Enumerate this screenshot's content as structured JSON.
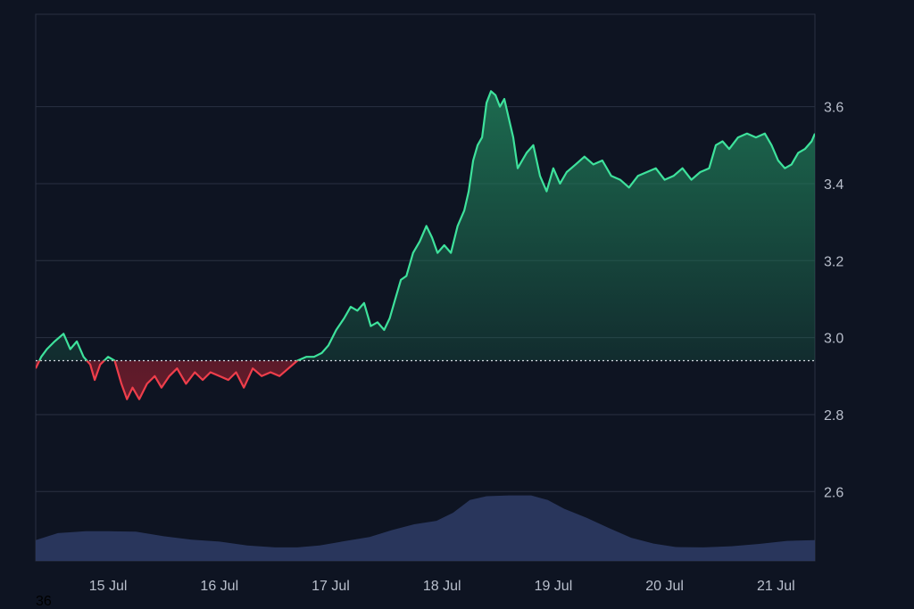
{
  "chart_data": {
    "type": "area",
    "title": "",
    "xlabel": "",
    "ylabel": "",
    "x_ticks": [
      "15 Jul",
      "16 Jul",
      "17 Jul",
      "18 Jul",
      "19 Jul",
      "20 Jul",
      "21 Jul"
    ],
    "y_ticks": [
      "2.6",
      "2.8",
      "3.0",
      "3.2",
      "3.4",
      "3.6"
    ],
    "ylim": [
      2.42,
      3.84
    ],
    "x_range_days": [
      14.35,
      21.35
    ],
    "baseline": 2.94,
    "grid": "horizontal",
    "y_axis_side": "right",
    "series": [
      {
        "kind": "price",
        "points": [
          [
            14.35,
            2.92
          ],
          [
            14.4,
            2.95
          ],
          [
            14.45,
            2.97
          ],
          [
            14.52,
            2.99
          ],
          [
            14.6,
            3.01
          ],
          [
            14.66,
            2.97
          ],
          [
            14.72,
            2.99
          ],
          [
            14.78,
            2.95
          ],
          [
            14.84,
            2.93
          ],
          [
            14.88,
            2.89
          ],
          [
            14.93,
            2.93
          ],
          [
            15.0,
            2.95
          ],
          [
            15.06,
            2.94
          ],
          [
            15.12,
            2.88
          ],
          [
            15.17,
            2.84
          ],
          [
            15.22,
            2.87
          ],
          [
            15.28,
            2.84
          ],
          [
            15.35,
            2.88
          ],
          [
            15.42,
            2.9
          ],
          [
            15.48,
            2.87
          ],
          [
            15.55,
            2.9
          ],
          [
            15.62,
            2.92
          ],
          [
            15.7,
            2.88
          ],
          [
            15.78,
            2.91
          ],
          [
            15.85,
            2.89
          ],
          [
            15.92,
            2.91
          ],
          [
            16.0,
            2.9
          ],
          [
            16.08,
            2.89
          ],
          [
            16.15,
            2.91
          ],
          [
            16.22,
            2.87
          ],
          [
            16.3,
            2.92
          ],
          [
            16.38,
            2.9
          ],
          [
            16.46,
            2.91
          ],
          [
            16.54,
            2.9
          ],
          [
            16.62,
            2.92
          ],
          [
            16.7,
            2.94
          ],
          [
            16.78,
            2.95
          ],
          [
            16.85,
            2.95
          ],
          [
            16.92,
            2.96
          ],
          [
            16.98,
            2.98
          ],
          [
            17.05,
            3.02
          ],
          [
            17.12,
            3.05
          ],
          [
            17.18,
            3.08
          ],
          [
            17.24,
            3.07
          ],
          [
            17.3,
            3.09
          ],
          [
            17.36,
            3.03
          ],
          [
            17.42,
            3.04
          ],
          [
            17.48,
            3.02
          ],
          [
            17.53,
            3.05
          ],
          [
            17.58,
            3.1
          ],
          [
            17.63,
            3.15
          ],
          [
            17.68,
            3.16
          ],
          [
            17.74,
            3.22
          ],
          [
            17.8,
            3.25
          ],
          [
            17.86,
            3.29
          ],
          [
            17.91,
            3.26
          ],
          [
            17.96,
            3.22
          ],
          [
            18.02,
            3.24
          ],
          [
            18.08,
            3.22
          ],
          [
            18.14,
            3.29
          ],
          [
            18.2,
            3.33
          ],
          [
            18.24,
            3.38
          ],
          [
            18.28,
            3.46
          ],
          [
            18.32,
            3.5
          ],
          [
            18.36,
            3.52
          ],
          [
            18.4,
            3.61
          ],
          [
            18.44,
            3.64
          ],
          [
            18.48,
            3.63
          ],
          [
            18.52,
            3.6
          ],
          [
            18.56,
            3.62
          ],
          [
            18.6,
            3.57
          ],
          [
            18.64,
            3.52
          ],
          [
            18.68,
            3.44
          ],
          [
            18.72,
            3.46
          ],
          [
            18.76,
            3.48
          ],
          [
            18.82,
            3.5
          ],
          [
            18.88,
            3.42
          ],
          [
            18.94,
            3.38
          ],
          [
            19.0,
            3.44
          ],
          [
            19.06,
            3.4
          ],
          [
            19.12,
            3.43
          ],
          [
            19.2,
            3.45
          ],
          [
            19.28,
            3.47
          ],
          [
            19.36,
            3.45
          ],
          [
            19.44,
            3.46
          ],
          [
            19.52,
            3.42
          ],
          [
            19.6,
            3.41
          ],
          [
            19.68,
            3.39
          ],
          [
            19.76,
            3.42
          ],
          [
            19.84,
            3.43
          ],
          [
            19.92,
            3.44
          ],
          [
            20.0,
            3.41
          ],
          [
            20.08,
            3.42
          ],
          [
            20.16,
            3.44
          ],
          [
            20.24,
            3.41
          ],
          [
            20.32,
            3.43
          ],
          [
            20.4,
            3.44
          ],
          [
            20.46,
            3.5
          ],
          [
            20.52,
            3.51
          ],
          [
            20.58,
            3.49
          ],
          [
            20.66,
            3.52
          ],
          [
            20.74,
            3.53
          ],
          [
            20.82,
            3.52
          ],
          [
            20.9,
            3.53
          ],
          [
            20.96,
            3.5
          ],
          [
            21.02,
            3.46
          ],
          [
            21.08,
            3.44
          ],
          [
            21.14,
            3.45
          ],
          [
            21.2,
            3.48
          ],
          [
            21.26,
            3.49
          ],
          [
            21.32,
            3.51
          ],
          [
            21.35,
            3.53
          ]
        ]
      },
      {
        "kind": "volume",
        "points": [
          [
            14.35,
            2.474
          ],
          [
            14.55,
            2.492
          ],
          [
            14.8,
            2.497
          ],
          [
            15.0,
            2.497
          ],
          [
            15.25,
            2.496
          ],
          [
            15.5,
            2.484
          ],
          [
            15.75,
            2.475
          ],
          [
            16.0,
            2.47
          ],
          [
            16.25,
            2.46
          ],
          [
            16.5,
            2.455
          ],
          [
            16.7,
            2.455
          ],
          [
            16.9,
            2.46
          ],
          [
            17.1,
            2.47
          ],
          [
            17.35,
            2.482
          ],
          [
            17.55,
            2.5
          ],
          [
            17.75,
            2.515
          ],
          [
            17.95,
            2.524
          ],
          [
            18.1,
            2.545
          ],
          [
            18.25,
            2.578
          ],
          [
            18.4,
            2.588
          ],
          [
            18.6,
            2.59
          ],
          [
            18.8,
            2.59
          ],
          [
            18.95,
            2.578
          ],
          [
            19.1,
            2.555
          ],
          [
            19.3,
            2.532
          ],
          [
            19.5,
            2.505
          ],
          [
            19.7,
            2.48
          ],
          [
            19.9,
            2.465
          ],
          [
            20.1,
            2.456
          ],
          [
            20.35,
            2.455
          ],
          [
            20.6,
            2.458
          ],
          [
            20.85,
            2.464
          ],
          [
            21.1,
            2.472
          ],
          [
            21.35,
            2.474
          ]
        ]
      }
    ],
    "colors": {
      "background": "#0e1422",
      "up_line": "#3ee29c",
      "down_line": "#ee3e4b",
      "up_fill": "#1f7a57",
      "down_fill": "#6e1c2c",
      "volume": "#2c3a63",
      "grid": "#2a3142",
      "baseline": "#d8dce4"
    }
  },
  "corner_label": "36"
}
